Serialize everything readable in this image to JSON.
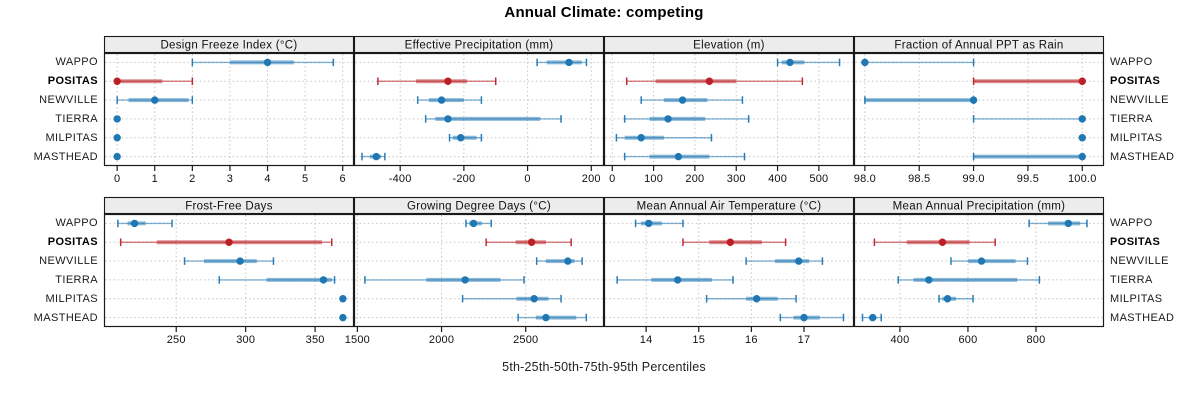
{
  "title": "Annual Climate: competing",
  "xlabel": "5th-25th-50th-75th-95th Percentiles",
  "sites": [
    "WAPPO",
    "POSITAS",
    "NEWVILLE",
    "TIERRA",
    "MILPITAS",
    "MASTHEAD"
  ],
  "highlight_site": "POSITAS",
  "colors": {
    "normal": "#1f77b4",
    "highlight": "#bc2026",
    "strip_bg": "#ececec",
    "grid": "#c6c6c6",
    "border": "#1a1a1a",
    "text": "#111111"
  },
  "chart_data": [
    {
      "type": "dotplot-percentiles",
      "title": "Design Freeze Index (°C)",
      "xlim": [
        -0.35,
        6.3
      ],
      "ticks": [
        0,
        1,
        2,
        3,
        4,
        5,
        6
      ],
      "tick_labels": [
        "0",
        "1",
        "2",
        "3",
        "4",
        "5",
        "6"
      ],
      "series": [
        {
          "site": "WAPPO",
          "p": [
            2.0,
            3.0,
            4.0,
            4.7,
            5.75
          ]
        },
        {
          "site": "POSITAS",
          "p": [
            0,
            0,
            0,
            1.2,
            2.0
          ]
        },
        {
          "site": "NEWVILLE",
          "p": [
            0,
            0.3,
            1.0,
            1.9,
            2.0
          ]
        },
        {
          "site": "TIERRA",
          "p": [
            0,
            0,
            0,
            0,
            0
          ]
        },
        {
          "site": "MILPITAS",
          "p": [
            0,
            0,
            0,
            0,
            0
          ]
        },
        {
          "site": "MASTHEAD",
          "p": [
            0,
            0,
            0,
            0,
            0
          ]
        }
      ]
    },
    {
      "type": "dotplot-percentiles",
      "title": "Effective Precipitation (mm)",
      "xlim": [
        -545,
        240
      ],
      "ticks": [
        -400,
        -200,
        0,
        200
      ],
      "tick_labels": [
        "-400",
        "-200",
        "0",
        "200"
      ],
      "series": [
        {
          "site": "WAPPO",
          "p": [
            30,
            60,
            130,
            170,
            185
          ]
        },
        {
          "site": "POSITAS",
          "p": [
            -470,
            -350,
            -250,
            -190,
            -100
          ]
        },
        {
          "site": "NEWVILLE",
          "p": [
            -345,
            -310,
            -270,
            -200,
            -145
          ]
        },
        {
          "site": "TIERRA",
          "p": [
            -320,
            -290,
            -250,
            40,
            105
          ]
        },
        {
          "site": "MILPITAS",
          "p": [
            -245,
            -235,
            -210,
            -160,
            -145
          ]
        },
        {
          "site": "MASTHEAD",
          "p": [
            -520,
            -495,
            -475,
            -460,
            -448
          ]
        }
      ]
    },
    {
      "type": "dotplot-percentiles",
      "title": "Elevation (m)",
      "xlim": [
        -20,
        585
      ],
      "ticks": [
        0,
        100,
        200,
        300,
        400,
        500
      ],
      "tick_labels": [
        "0",
        "100",
        "200",
        "300",
        "400",
        "500"
      ],
      "series": [
        {
          "site": "WAPPO",
          "p": [
            400,
            410,
            430,
            465,
            550
          ]
        },
        {
          "site": "POSITAS",
          "p": [
            35,
            105,
            235,
            300,
            460
          ]
        },
        {
          "site": "NEWVILLE",
          "p": [
            70,
            125,
            170,
            230,
            315
          ]
        },
        {
          "site": "TIERRA",
          "p": [
            30,
            90,
            135,
            225,
            330
          ]
        },
        {
          "site": "MILPITAS",
          "p": [
            10,
            30,
            70,
            125,
            240
          ]
        },
        {
          "site": "MASTHEAD",
          "p": [
            30,
            90,
            160,
            235,
            320
          ]
        }
      ]
    },
    {
      "type": "dotplot-percentiles",
      "title": "Fraction of Annual PPT as Rain",
      "xlim": [
        97.9,
        100.2
      ],
      "ticks": [
        98,
        98.5,
        99,
        99.5,
        100
      ],
      "tick_labels": [
        "98.0",
        "98.5",
        "99.0",
        "99.5",
        "100.0"
      ],
      "series": [
        {
          "site": "WAPPO",
          "p": [
            98,
            98,
            98,
            98,
            99
          ]
        },
        {
          "site": "POSITAS",
          "p": [
            99,
            99,
            100,
            100,
            100
          ]
        },
        {
          "site": "NEWVILLE",
          "p": [
            98,
            98,
            99,
            99,
            99
          ]
        },
        {
          "site": "TIERRA",
          "p": [
            99,
            100,
            100,
            100,
            100
          ]
        },
        {
          "site": "MILPITAS",
          "p": [
            100,
            100,
            100,
            100,
            100
          ]
        },
        {
          "site": "MASTHEAD",
          "p": [
            99,
            99,
            100,
            100,
            100
          ]
        }
      ]
    },
    {
      "type": "dotplot-percentiles",
      "title": "Frost-Free Days",
      "xlim": [
        198,
        378
      ],
      "ticks": [
        250,
        300,
        350
      ],
      "tick_labels": [
        "250",
        "300",
        "350"
      ],
      "series": [
        {
          "site": "WAPPO",
          "p": [
            208,
            215,
            220,
            228,
            247
          ]
        },
        {
          "site": "POSITAS",
          "p": [
            210,
            236,
            288,
            355,
            362
          ]
        },
        {
          "site": "NEWVILLE",
          "p": [
            256,
            270,
            296,
            308,
            320
          ]
        },
        {
          "site": "TIERRA",
          "p": [
            281,
            315,
            356,
            362,
            364
          ]
        },
        {
          "site": "MILPITAS",
          "p": [
            370,
            370,
            370,
            370,
            370
          ]
        },
        {
          "site": "MASTHEAD",
          "p": [
            370,
            370,
            370,
            370,
            370
          ]
        }
      ]
    },
    {
      "type": "dotplot-percentiles",
      "title": "Growing Degree Days (°C)",
      "xlim": [
        1480,
        2965
      ],
      "ticks": [
        1500,
        2000,
        2500
      ],
      "tick_labels": [
        "1500",
        "2000",
        "2500"
      ],
      "series": [
        {
          "site": "WAPPO",
          "p": [
            2145,
            2165,
            2190,
            2240,
            2295
          ]
        },
        {
          "site": "POSITAS",
          "p": [
            2265,
            2440,
            2535,
            2620,
            2770
          ]
        },
        {
          "site": "NEWVILLE",
          "p": [
            2565,
            2620,
            2750,
            2790,
            2835
          ]
        },
        {
          "site": "TIERRA",
          "p": [
            1545,
            1910,
            2140,
            2350,
            2490
          ]
        },
        {
          "site": "MILPITAS",
          "p": [
            2125,
            2445,
            2550,
            2635,
            2710
          ]
        },
        {
          "site": "MASTHEAD",
          "p": [
            2455,
            2560,
            2620,
            2800,
            2860
          ]
        }
      ]
    },
    {
      "type": "dotplot-percentiles",
      "title": "Mean Annual Air Temperature (°C)",
      "xlim": [
        13.2,
        17.95
      ],
      "ticks": [
        14,
        15,
        16,
        17
      ],
      "tick_labels": [
        "14",
        "15",
        "16",
        "17"
      ],
      "series": [
        {
          "site": "WAPPO",
          "p": [
            13.8,
            13.9,
            14.05,
            14.3,
            14.7
          ]
        },
        {
          "site": "POSITAS",
          "p": [
            14.7,
            15.2,
            15.6,
            16.2,
            16.65
          ]
        },
        {
          "site": "NEWVILLE",
          "p": [
            15.9,
            16.45,
            16.9,
            17.1,
            17.35
          ]
        },
        {
          "site": "TIERRA",
          "p": [
            13.45,
            14.1,
            14.6,
            15.25,
            15.65
          ]
        },
        {
          "site": "MILPITAS",
          "p": [
            15.15,
            15.9,
            16.1,
            16.5,
            16.85
          ]
        },
        {
          "site": "MASTHEAD",
          "p": [
            16.55,
            16.8,
            17.0,
            17.3,
            17.75
          ]
        }
      ]
    },
    {
      "type": "dotplot-percentiles",
      "title": "Mean Annual Precipitation (mm)",
      "xlim": [
        265,
        1000
      ],
      "ticks": [
        400,
        600,
        800
      ],
      "tick_labels": [
        "400",
        "600",
        "800"
      ],
      "series": [
        {
          "site": "WAPPO",
          "p": [
            780,
            835,
            895,
            930,
            950
          ]
        },
        {
          "site": "POSITAS",
          "p": [
            325,
            420,
            525,
            605,
            680
          ]
        },
        {
          "site": "NEWVILLE",
          "p": [
            550,
            600,
            640,
            740,
            775
          ]
        },
        {
          "site": "TIERRA",
          "p": [
            395,
            440,
            485,
            745,
            810
          ]
        },
        {
          "site": "MILPITAS",
          "p": [
            515,
            525,
            540,
            565,
            615
          ]
        },
        {
          "site": "MASTHEAD",
          "p": [
            290,
            310,
            320,
            330,
            345
          ]
        }
      ]
    }
  ]
}
